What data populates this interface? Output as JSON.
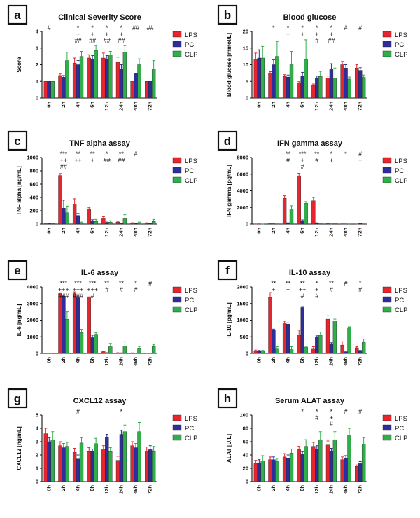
{
  "colors": {
    "LPS": "#e8242d",
    "PCI": "#2d2e9b",
    "CLP": "#2fae4a"
  },
  "chart_data": [
    {
      "letter": "a",
      "type": "bar",
      "title": "Clinical Severity Score",
      "ylabel": "Score",
      "ylim": [
        0,
        4
      ],
      "yticks": [
        0,
        1,
        2,
        3,
        4
      ],
      "categories": [
        "0h",
        "2h",
        "4h",
        "6h",
        "12h",
        "24h",
        "48h",
        "72h"
      ],
      "series": [
        {
          "name": "LPS",
          "values": [
            1,
            1.35,
            2.1,
            2.4,
            2.4,
            2.15,
            1,
            1
          ],
          "errors": [
            0,
            0.12,
            0.3,
            0.2,
            0.3,
            0.3,
            0,
            0
          ]
        },
        {
          "name": "PCI",
          "values": [
            1,
            1.25,
            2.0,
            2.35,
            2.35,
            1.75,
            1.5,
            1
          ],
          "errors": [
            0,
            0.1,
            0.25,
            0.2,
            0.2,
            0.25,
            0,
            0
          ]
        },
        {
          "name": "CLP",
          "values": [
            1,
            2.25,
            2.5,
            2.85,
            2.6,
            2.75,
            2.0,
            1.75
          ],
          "errors": [
            0,
            0.5,
            0.3,
            0.3,
            0.2,
            0.4,
            0.35,
            0.5
          ]
        }
      ],
      "annotations": [
        [
          "#"
        ],
        [],
        [
          "*",
          "+",
          "##"
        ],
        [
          "*",
          "+",
          "##"
        ],
        [
          "*",
          "+",
          "##"
        ],
        [
          "*",
          "+",
          "##"
        ],
        [
          "##"
        ],
        [
          "##"
        ]
      ]
    },
    {
      "letter": "b",
      "type": "bar",
      "title": "Blood glucose",
      "ylabel": "Blood glucose [mmol/L]",
      "ylim": [
        0,
        20
      ],
      "yticks": [
        0,
        5,
        10,
        15,
        20
      ],
      "categories": [
        "0h",
        "2h",
        "4h",
        "6h",
        "12h",
        "24h",
        "48h",
        "72h"
      ],
      "series": [
        {
          "name": "LPS",
          "values": [
            11.5,
            7.5,
            6.5,
            4.5,
            3.8,
            6.0,
            10.0,
            9.0
          ],
          "errors": [
            2,
            0.4,
            0.5,
            0.4,
            0.4,
            0.6,
            1.0,
            1.0
          ]
        },
        {
          "name": "PCI",
          "values": [
            12.0,
            10.0,
            6.3,
            6.7,
            6.0,
            8.8,
            9.0,
            8.3
          ],
          "errors": [
            2.5,
            1.5,
            0.6,
            1.0,
            0.6,
            1.5,
            1.0,
            0.8
          ]
        },
        {
          "name": "CLP",
          "values": [
            12.0,
            12.5,
            10.0,
            11.5,
            6.5,
            6.0,
            5.7,
            6.2
          ],
          "errors": [
            3.5,
            4.5,
            4.0,
            6.0,
            1.5,
            3.0,
            0.6,
            0.7
          ]
        }
      ],
      "annotations": [
        [],
        [
          "*"
        ],
        [
          "*",
          "+"
        ],
        [
          "*",
          "+"
        ],
        [
          "*",
          "+",
          "#"
        ],
        [
          "*",
          "+",
          "##"
        ],
        [
          "#"
        ],
        [
          "#"
        ]
      ]
    },
    {
      "letter": "c",
      "type": "bar",
      "title": "TNF alpha assay",
      "ylabel": "TNF alpha [ng/mL]",
      "ylim": [
        0,
        1000
      ],
      "yticks": [
        0,
        200,
        400,
        600,
        800,
        1000
      ],
      "categories": [
        "0h",
        "2h",
        "4h",
        "6h",
        "12h",
        "24h",
        "48h",
        "72h"
      ],
      "series": [
        {
          "name": "LPS",
          "values": [
            5,
            730,
            300,
            230,
            80,
            30,
            15,
            15
          ],
          "errors": [
            3,
            30,
            80,
            20,
            30,
            10,
            5,
            5
          ]
        },
        {
          "name": "PCI",
          "values": [
            5,
            240,
            130,
            45,
            20,
            10,
            10,
            10
          ],
          "errors": [
            3,
            120,
            30,
            20,
            10,
            5,
            5,
            5
          ]
        },
        {
          "name": "CLP",
          "values": [
            10,
            170,
            20,
            40,
            30,
            80,
            20,
            40
          ],
          "errors": [
            5,
            100,
            10,
            30,
            20,
            60,
            10,
            30
          ]
        }
      ],
      "annotations": [
        [],
        [
          "***",
          "++",
          "##"
        ],
        [
          "**",
          "++"
        ],
        [
          "**",
          "+"
        ],
        [
          "*",
          "##"
        ],
        [
          "**",
          "##"
        ],
        [
          "#"
        ],
        []
      ]
    },
    {
      "letter": "d",
      "type": "bar",
      "title": "IFN gamma assay",
      "ylabel": "IFN gamma [pg/mL]",
      "ylim": [
        0,
        8000
      ],
      "yticks": [
        0,
        2000,
        4000,
        6000,
        8000
      ],
      "categories": [
        "0h",
        "2h",
        "4h",
        "6h",
        "12h",
        "24h",
        "48h",
        "72h"
      ],
      "series": [
        {
          "name": "LPS",
          "values": [
            10,
            50,
            3100,
            5800,
            2800,
            50,
            20,
            10
          ],
          "errors": [
            5,
            20,
            300,
            300,
            400,
            20,
            10,
            5
          ]
        },
        {
          "name": "PCI",
          "values": [
            10,
            20,
            100,
            400,
            100,
            10,
            10,
            50
          ],
          "errors": [
            5,
            10,
            50,
            100,
            50,
            5,
            5,
            20
          ]
        },
        {
          "name": "CLP",
          "values": [
            10,
            30,
            1800,
            2500,
            50,
            50,
            20,
            30
          ],
          "errors": [
            5,
            10,
            400,
            200,
            20,
            20,
            10,
            10
          ]
        }
      ],
      "annotations": [
        [],
        [],
        [
          "**",
          "#"
        ],
        [
          "***",
          "+",
          "#"
        ],
        [
          "**",
          "#"
        ],
        [
          "*",
          "+"
        ],
        [
          "*"
        ],
        [
          "#",
          "+"
        ]
      ]
    },
    {
      "letter": "e",
      "type": "bar",
      "title": "IL-6 assay",
      "ylabel": "IL-6 [ng/mL]",
      "ylim": [
        0,
        4000
      ],
      "yticks": [
        0,
        1000,
        2000,
        3000,
        4000
      ],
      "categories": [
        "0h",
        "2h",
        "4h",
        "6h",
        "12h",
        "24h",
        "48h",
        "72h"
      ],
      "series": [
        {
          "name": "LPS",
          "values": [
            0,
            3600,
            3600,
            3350,
            100,
            30,
            20,
            10
          ],
          "errors": [
            0,
            50,
            100,
            50,
            30,
            10,
            10,
            5
          ]
        },
        {
          "name": "PCI",
          "values": [
            0,
            3450,
            3350,
            950,
            30,
            20,
            10,
            10
          ],
          "errors": [
            0,
            50,
            150,
            150,
            10,
            10,
            5,
            5
          ]
        },
        {
          "name": "CLP",
          "values": [
            0,
            2050,
            1250,
            1150,
            400,
            450,
            320,
            420
          ],
          "errors": [
            0,
            450,
            200,
            100,
            200,
            250,
            100,
            100
          ]
        }
      ],
      "annotations": [
        [],
        [
          "***",
          "+++",
          "###"
        ],
        [
          "***",
          "+++",
          "###"
        ],
        [
          "***",
          "+++",
          "#"
        ],
        [
          "**",
          "#"
        ],
        [
          "**",
          "#"
        ],
        [
          "*",
          "#"
        ],
        [
          "#"
        ]
      ]
    },
    {
      "letter": "f",
      "type": "bar",
      "title": "IL-10 assay",
      "ylabel": "IL-10 [pg/mL]",
      "ylim": [
        0,
        2000
      ],
      "yticks": [
        0,
        500,
        1000,
        1500,
        2000
      ],
      "categories": [
        "0h",
        "2h",
        "4h",
        "6h",
        "12h",
        "24h",
        "48h",
        "72h"
      ],
      "series": [
        {
          "name": "LPS",
          "values": [
            80,
            1680,
            920,
            550,
            150,
            1030,
            250,
            170
          ],
          "errors": [
            20,
            150,
            50,
            150,
            50,
            100,
            100,
            30
          ]
        },
        {
          "name": "PCI",
          "values": [
            70,
            700,
            880,
            1380,
            500,
            270,
            50,
            70
          ],
          "errors": [
            20,
            30,
            40,
            30,
            30,
            50,
            20,
            20
          ]
        },
        {
          "name": "CLP",
          "values": [
            70,
            150,
            140,
            190,
            540,
            980,
            780,
            330
          ],
          "errors": [
            20,
            50,
            60,
            30,
            100,
            50,
            20,
            100
          ]
        }
      ],
      "annotations": [
        [],
        [
          "**",
          "+"
        ],
        [
          "**",
          "+"
        ],
        [
          "**",
          "++",
          "#"
        ],
        [
          "*",
          "+",
          "#"
        ],
        [
          "**",
          "#"
        ],
        [
          "#"
        ],
        [
          "*",
          "#"
        ]
      ]
    },
    {
      "letter": "g",
      "type": "bar",
      "title": "CXCL12 assay",
      "ylabel": "CXCL12 [ng/mL]",
      "ylim": [
        0,
        5
      ],
      "yticks": [
        0,
        1,
        2,
        3,
        4,
        5
      ],
      "categories": [
        "0h",
        "2h",
        "4h",
        "6h",
        "12h",
        "24h",
        "48h",
        "72h"
      ],
      "series": [
        {
          "name": "LPS",
          "values": [
            3.6,
            2.7,
            2.2,
            2.25,
            2.4,
            1.6,
            2.7,
            2.3
          ],
          "errors": [
            0.4,
            0.3,
            0.3,
            0.3,
            0.3,
            0.3,
            0.3,
            0.3
          ]
        },
        {
          "name": "PCI",
          "values": [
            3.0,
            2.55,
            1.7,
            2.25,
            3.35,
            3.55,
            2.55,
            2.4
          ],
          "errors": [
            0.3,
            0.3,
            0.3,
            0.2,
            0.2,
            0.3,
            0.3,
            0.3
          ]
        },
        {
          "name": "CLP",
          "values": [
            3.15,
            2.65,
            2.9,
            2.85,
            2.25,
            3.75,
            3.75,
            2.25
          ],
          "errors": [
            0.6,
            0.3,
            0.4,
            0.4,
            0.3,
            0.5,
            0.7,
            0.4
          ]
        }
      ],
      "annotations": [
        [],
        [],
        [
          "#"
        ],
        [],
        [],
        [
          "*"
        ],
        [],
        []
      ]
    },
    {
      "letter": "h",
      "type": "bar",
      "title": "Serum ALAT assay",
      "ylabel": "ALAT [U/L]",
      "ylim": [
        0,
        100
      ],
      "yticks": [
        0,
        20,
        40,
        60,
        80,
        100
      ],
      "categories": [
        "0h",
        "2h",
        "4h",
        "6h",
        "12h",
        "24h",
        "48h",
        "72h"
      ],
      "series": [
        {
          "name": "LPS",
          "values": [
            27,
            33,
            37,
            48,
            53,
            55,
            33,
            23
          ],
          "errors": [
            5,
            4,
            5,
            5,
            6,
            6,
            4,
            2
          ]
        },
        {
          "name": "PCI",
          "values": [
            28,
            33,
            35,
            41,
            49,
            45,
            35,
            27
          ],
          "errors": [
            5,
            4,
            5,
            4,
            5,
            5,
            4,
            3
          ]
        },
        {
          "name": "CLP",
          "values": [
            31,
            30,
            43,
            53,
            63,
            63,
            70,
            56
          ],
          "errors": [
            8,
            5,
            6,
            10,
            12,
            12,
            10,
            10
          ]
        }
      ],
      "annotations": [
        [],
        [],
        [],
        [
          "*"
        ],
        [
          "*",
          "#"
        ],
        [
          "*",
          "+",
          "#"
        ],
        [
          "#"
        ],
        [
          "#"
        ]
      ]
    }
  ]
}
